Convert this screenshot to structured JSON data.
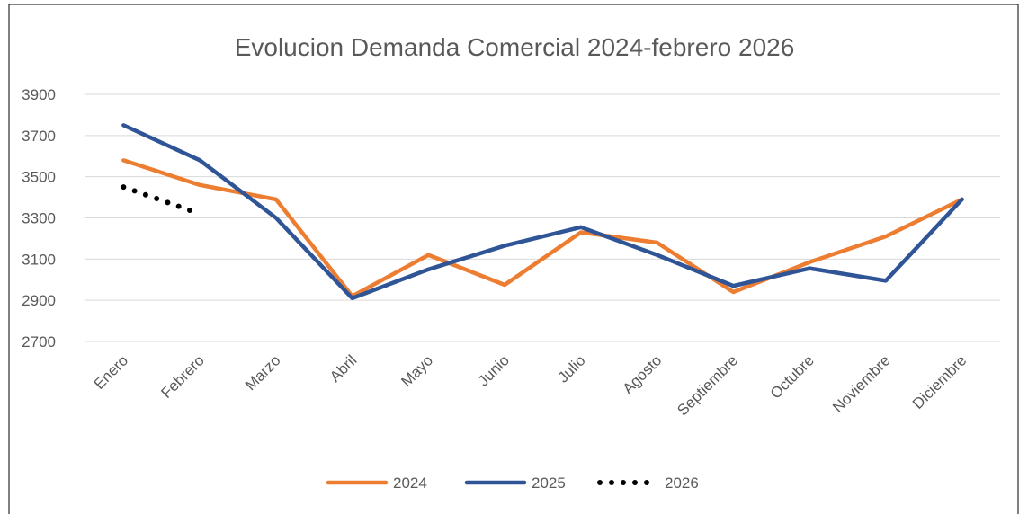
{
  "chart_data": {
    "type": "line",
    "title": "Evolucion Demanda Comercial 2024-febrero 2026",
    "categories": [
      "Enero",
      "Febrero",
      "Marzo",
      "Abril",
      "Mayo",
      "Junio",
      "Julio",
      "Agosto",
      "Septiembre",
      "Octubre",
      "Noviembre",
      "Diciembre"
    ],
    "series": [
      {
        "name": "2024",
        "color": "#ed7d31",
        "style": "solid",
        "values": [
          3580,
          3460,
          3390,
          2920,
          3120,
          2975,
          3230,
          3180,
          2940,
          3085,
          3210,
          3390
        ]
      },
      {
        "name": "2025",
        "color": "#2f5597",
        "style": "solid",
        "values": [
          3750,
          3580,
          3300,
          2910,
          3050,
          3165,
          3255,
          3120,
          2970,
          3055,
          2995,
          3390
        ]
      },
      {
        "name": "2026",
        "color": "#000000",
        "style": "dotted",
        "values": [
          3450,
          3320,
          null,
          null,
          null,
          null,
          null,
          null,
          null,
          null,
          null,
          null
        ]
      }
    ],
    "ylim": [
      2700,
      3900
    ],
    "yticks": [
      2700,
      2900,
      3100,
      3300,
      3500,
      3700,
      3900
    ],
    "grid": true,
    "legend": "bottom"
  }
}
